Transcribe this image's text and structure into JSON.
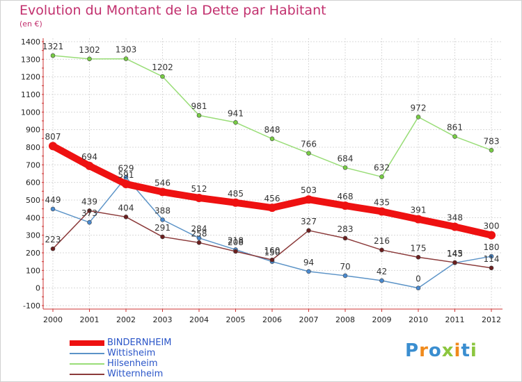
{
  "chart_data": {
    "type": "line",
    "title": "Evolution du Montant de la Dette par Habitant",
    "subtitle": "(en €)",
    "x": [
      "2000",
      "2001",
      "2002",
      "2003",
      "2004",
      "2005",
      "2006",
      "2007",
      "2008",
      "2009",
      "2010",
      "2011",
      "2012"
    ],
    "ylim": [
      -100,
      1400
    ],
    "yticks": [
      -100,
      0,
      100,
      200,
      300,
      400,
      500,
      600,
      700,
      800,
      900,
      1000,
      1100,
      1200,
      1300,
      1400
    ],
    "grid": true,
    "legend_position": "bottom-left",
    "series": [
      {
        "name": "BINDERNHEIM",
        "color": "#ee1111",
        "marker": "#ee1111",
        "values": [
          807,
          694,
          591,
          546,
          512,
          485,
          456,
          503,
          468,
          435,
          391,
          348,
          300
        ]
      },
      {
        "name": "Wittisheim",
        "color": "#5b93c7",
        "marker": "#4a8ad0",
        "values": [
          449,
          373,
          629,
          388,
          284,
          218,
          150,
          94,
          70,
          42,
          0,
          143,
          180
        ]
      },
      {
        "name": "Hilsenheim",
        "color": "#99dd77",
        "marker": "#77cc44",
        "values": [
          1321,
          1302,
          1303,
          1202,
          981,
          941,
          848,
          766,
          684,
          632,
          972,
          861,
          783
        ]
      },
      {
        "name": "Witternheim",
        "color": "#8b3a3a",
        "marker": "#6b1f1f",
        "values": [
          223,
          439,
          404,
          291,
          258,
          208,
          160,
          327,
          283,
          216,
          175,
          145,
          114
        ]
      }
    ]
  },
  "logo": {
    "text": "Proxiti",
    "colors": [
      "#3a8ed0",
      "#f08a1c",
      "#3a8ed0",
      "#8cc63f",
      "#f08a1c",
      "#3a8ed0",
      "#8cc63f"
    ]
  }
}
